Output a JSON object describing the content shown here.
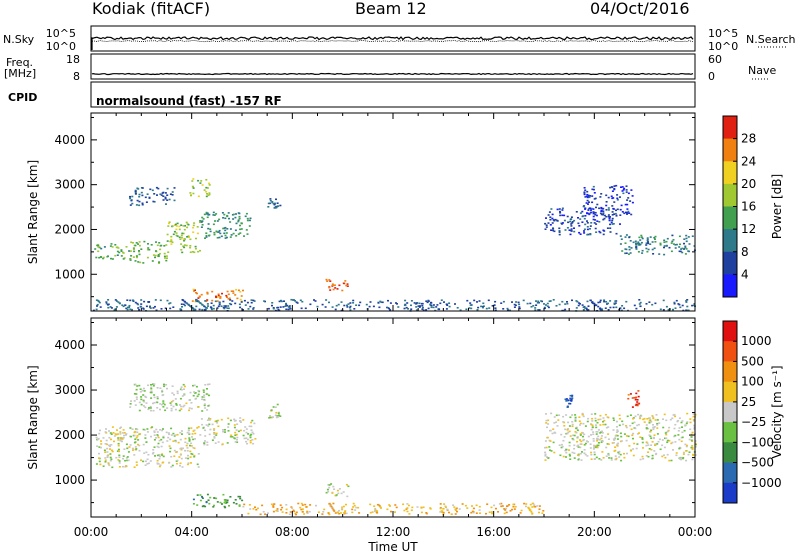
{
  "header": {
    "station": "Kodiak (fitACF)",
    "beam": "Beam 12",
    "date": "04/Oct/2016"
  },
  "status_panels": {
    "nsky_label": "N.Sky",
    "nsky_ticks": [
      "10^5",
      "10^0"
    ],
    "nsearch_label": "N.Search",
    "nsearch_ticks": [
      "10^5",
      "10^0"
    ],
    "freq_label_line1": "Freq.",
    "freq_label_line2": "[MHz]",
    "freq_ticks": [
      "18",
      "8"
    ],
    "nave_label": "Nave",
    "nave_ticks": [
      "60",
      "0"
    ],
    "cpid_label": "CPID",
    "cpid_text": "normalsound (fast) -157 RF"
  },
  "chart_data": [
    {
      "type": "heatmap",
      "name": "power",
      "ylabel": "Slant Range [km]",
      "xlabel": "",
      "x_ticks": [
        "00:00",
        "04:00",
        "08:00",
        "12:00",
        "16:00",
        "20:00",
        "00:00"
      ],
      "x_hours": [
        0,
        4,
        8,
        12,
        16,
        20,
        24
      ],
      "y_ticks": [
        1000,
        2000,
        3000,
        4000
      ],
      "ylim": [
        180,
        4600
      ],
      "colorbar": {
        "label": "Power [dB]",
        "ticks": [
          "4",
          "8",
          "12",
          "16",
          "20",
          "24",
          "28"
        ],
        "colors": [
          "#1a1aff",
          "#2040a0",
          "#2e7a8a",
          "#40a050",
          "#a0c830",
          "#f0d020",
          "#f08010",
          "#e02010"
        ]
      },
      "features": [
        {
          "t0": 0.1,
          "t1": 1.5,
          "r0": 1350,
          "r1": 1700,
          "level": 0.45
        },
        {
          "t0": 1.5,
          "t1": 3.0,
          "r0": 1250,
          "r1": 1750,
          "level": 0.5
        },
        {
          "t0": 3.0,
          "t1": 4.3,
          "r0": 1500,
          "r1": 2200,
          "level": 0.55
        },
        {
          "t0": 4.3,
          "t1": 6.3,
          "r0": 1800,
          "r1": 2400,
          "level": 0.35
        },
        {
          "t0": 1.5,
          "t1": 3.3,
          "r0": 2550,
          "r1": 2950,
          "level": 0.2
        },
        {
          "t0": 3.9,
          "t1": 4.7,
          "r0": 2750,
          "r1": 3150,
          "level": 0.6
        },
        {
          "t0": 7.0,
          "t1": 7.5,
          "r0": 2500,
          "r1": 2700,
          "level": 0.25
        },
        {
          "t0": 4.0,
          "t1": 6.0,
          "r0": 400,
          "r1": 700,
          "level": 0.85
        },
        {
          "t0": 9.3,
          "t1": 10.2,
          "r0": 650,
          "r1": 950,
          "level": 0.95
        },
        {
          "t0": 0.0,
          "t1": 24.0,
          "r0": 200,
          "r1": 450,
          "level": 0.2
        },
        {
          "t0": 18.0,
          "t1": 21.0,
          "r0": 1900,
          "r1": 2500,
          "level": 0.15
        },
        {
          "t0": 21.0,
          "t1": 24.0,
          "r0": 1450,
          "r1": 1900,
          "level": 0.3
        },
        {
          "t0": 19.5,
          "t1": 21.5,
          "r0": 2300,
          "r1": 3000,
          "level": 0.1
        }
      ]
    },
    {
      "type": "heatmap",
      "name": "velocity",
      "ylabel": "Slant Range [km]",
      "xlabel": "Time UT",
      "x_ticks": [
        "00:00",
        "04:00",
        "08:00",
        "12:00",
        "16:00",
        "20:00",
        "00:00"
      ],
      "x_hours": [
        0,
        4,
        8,
        12,
        16,
        20,
        24
      ],
      "y_ticks": [
        1000,
        2000,
        3000,
        4000
      ],
      "ylim": [
        180,
        4600
      ],
      "colorbar": {
        "label": "Velocity [m s⁻¹]",
        "ticks": [
          "1000",
          "500",
          "100",
          "25",
          "−25",
          "−100",
          "−500",
          "−1000"
        ],
        "colors": [
          "#1a3cc8",
          "#2a6ab0",
          "#3a8a40",
          "#6ac040",
          "#c8c8c8",
          "#f0c020",
          "#f09010",
          "#f05010",
          "#e01010"
        ]
      },
      "features": [
        {
          "t0": 0.1,
          "t1": 4.3,
          "r0": 1300,
          "r1": 2200,
          "level": 0.5
        },
        {
          "t0": 4.3,
          "t1": 6.5,
          "r0": 1800,
          "r1": 2400,
          "level": 0.5
        },
        {
          "t0": 1.5,
          "t1": 4.7,
          "r0": 2550,
          "r1": 3150,
          "level": 0.45
        },
        {
          "t0": 7.0,
          "t1": 7.5,
          "r0": 2400,
          "r1": 2700,
          "level": 0.5
        },
        {
          "t0": 4.0,
          "t1": 6.0,
          "r0": 400,
          "r1": 700,
          "level": 0.3
        },
        {
          "t0": 9.3,
          "t1": 10.2,
          "r0": 650,
          "r1": 950,
          "level": 0.5
        },
        {
          "t0": 6.0,
          "t1": 18.0,
          "r0": 250,
          "r1": 500,
          "level": 0.65
        },
        {
          "t0": 18.0,
          "t1": 24.0,
          "r0": 1450,
          "r1": 2500,
          "level": 0.5
        },
        {
          "t0": 21.3,
          "t1": 21.8,
          "r0": 2600,
          "r1": 3000,
          "level": 0.92
        },
        {
          "t0": 18.8,
          "t1": 19.1,
          "r0": 2600,
          "r1": 2900,
          "level": 0.05
        }
      ]
    }
  ]
}
